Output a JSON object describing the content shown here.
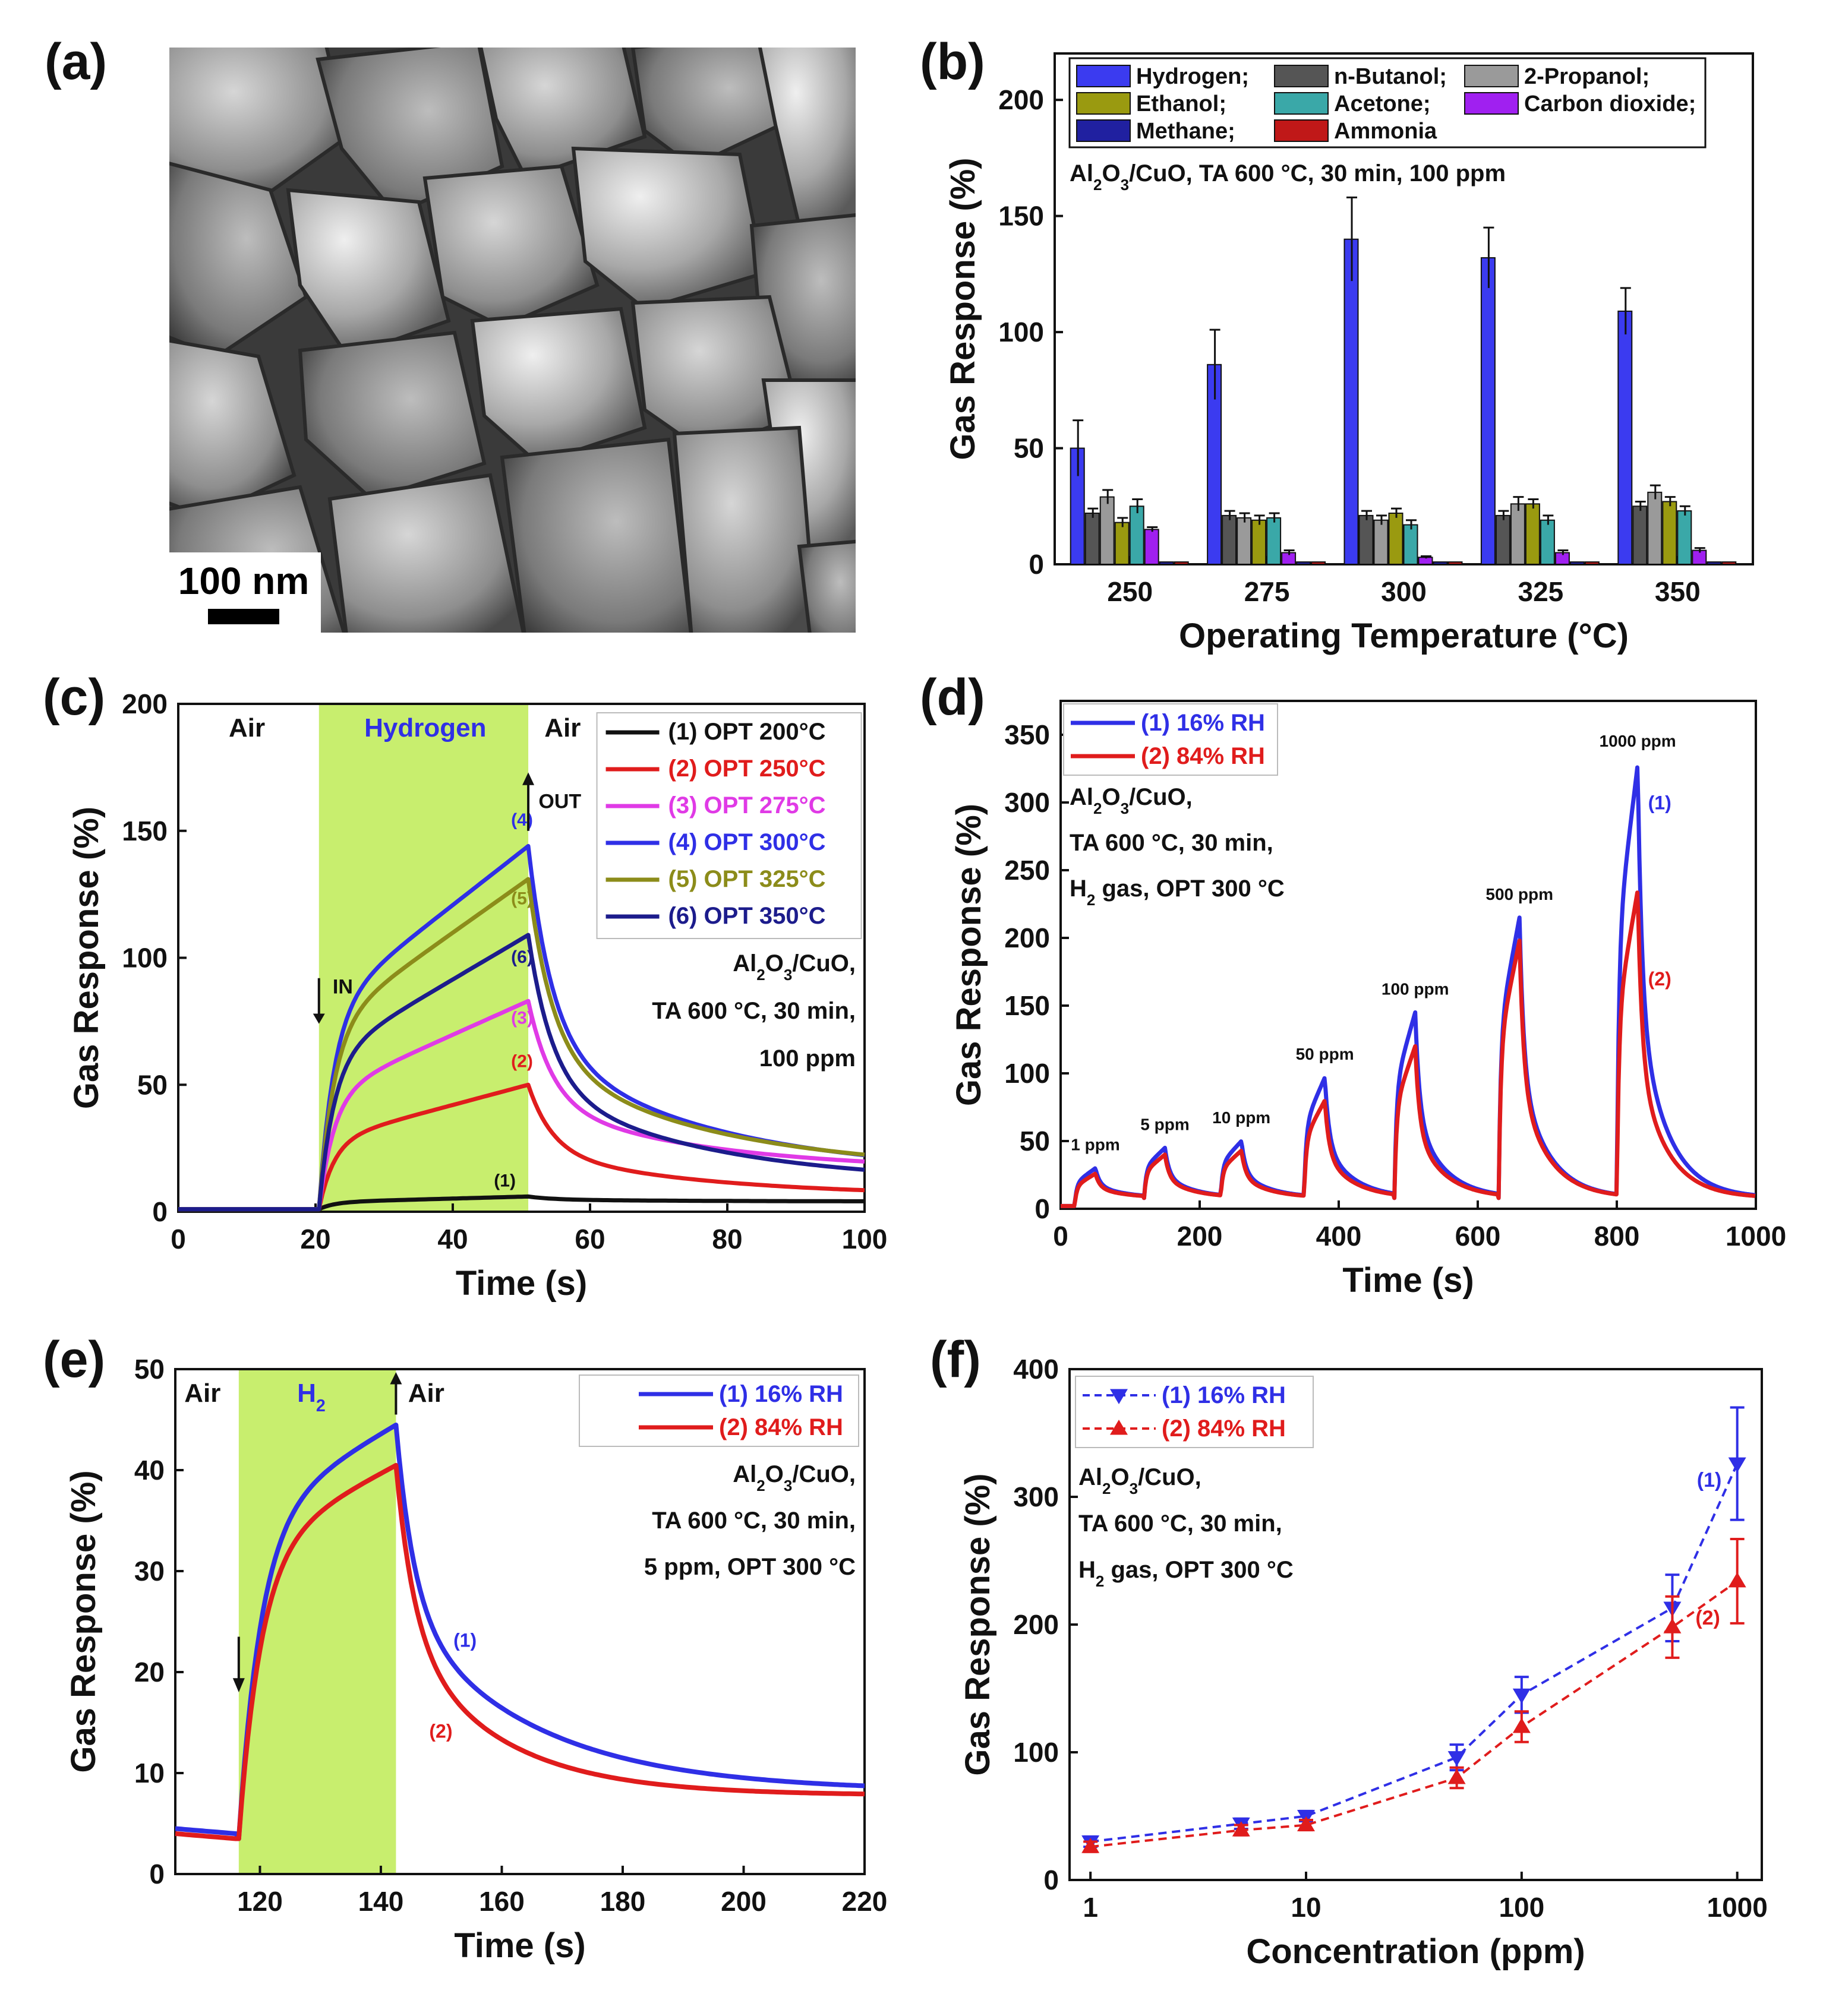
{
  "figure": {
    "panel_labels": [
      "(a)",
      "(b)",
      "(c)",
      "(d)",
      "(e)",
      "(f)"
    ],
    "scale_bar_label": "100 nm",
    "colors": {
      "blue": "#2f2fe6",
      "red": "#e01c1c",
      "magenta": "#e03ae6",
      "olive": "#8c8c1a",
      "navy": "#1c1c8c",
      "black": "#111111",
      "shade": "#c8ee6e"
    }
  },
  "chart_data": [
    {
      "id": "b",
      "type": "bar",
      "title": "",
      "xlabel": "Operating Temperature (°C)",
      "ylabel": "Gas Response (%)",
      "ylim": [
        0,
        220
      ],
      "yticks": [
        0,
        50,
        100,
        150,
        200
      ],
      "categories": [
        "250",
        "275",
        "300",
        "325",
        "350"
      ],
      "annotation": "Al2O3/CuO, TA 600 °C, 30 min, 100 ppm",
      "legend": "top-left",
      "series": [
        {
          "name": "Hydrogen;",
          "color": "#3b3bf0",
          "values": [
            50,
            86,
            140,
            132,
            109
          ],
          "errors": [
            12,
            15,
            18,
            13,
            10
          ]
        },
        {
          "name": "n-Butanol;",
          "color": "#555555",
          "values": [
            22,
            21,
            21,
            21,
            25
          ],
          "errors": [
            2,
            2,
            2,
            2,
            2
          ]
        },
        {
          "name": "2-Propanol;",
          "color": "#9a9a9a",
          "values": [
            29,
            20,
            19,
            26,
            31
          ],
          "errors": [
            3,
            2,
            2,
            3,
            3
          ]
        },
        {
          "name": "Ethanol;",
          "color": "#9a9a10",
          "values": [
            18,
            19,
            22,
            26,
            27
          ],
          "errors": [
            2,
            2,
            2,
            2,
            2
          ]
        },
        {
          "name": "Acetone;",
          "color": "#3aa8a8",
          "values": [
            25,
            20,
            17,
            19,
            23
          ],
          "errors": [
            3,
            2,
            2,
            2,
            2
          ]
        },
        {
          "name": "Carbon dioxide;",
          "color": "#a020f0",
          "values": [
            15,
            5,
            3,
            5,
            6
          ],
          "errors": [
            1,
            1,
            0.5,
            1,
            1
          ]
        },
        {
          "name": "Methane;",
          "color": "#2020a0",
          "values": [
            1,
            1,
            1,
            1,
            1
          ],
          "errors": [
            0,
            0,
            0,
            0,
            0
          ]
        },
        {
          "name": "Ammonia",
          "color": "#c01818",
          "values": [
            1,
            1,
            1,
            1,
            1
          ],
          "errors": [
            0,
            0,
            0,
            0,
            0
          ]
        }
      ]
    },
    {
      "id": "c",
      "type": "line",
      "xlabel": "Time (s)",
      "ylabel": "Gas Response (%)",
      "xlim": [
        0,
        100
      ],
      "ylim": [
        0,
        200
      ],
      "xticks": [
        0,
        20,
        40,
        60,
        80,
        100
      ],
      "yticks": [
        0,
        50,
        100,
        150,
        200
      ],
      "region_labels": [
        "Air",
        "Hydrogen",
        "Air"
      ],
      "arrow_labels": [
        "IN",
        "OUT"
      ],
      "annotation": [
        "Al2O3/CuO,",
        "TA 600 °C, 30 min,",
        "100 ppm"
      ],
      "legend": "top-right",
      "series": [
        {
          "name": "(1) OPT 200°C",
          "tag": "(1)",
          "color": "#111111",
          "peak": 6,
          "tail": 4
        },
        {
          "name": "(2) OPT 250°C",
          "tag": "(2)",
          "color": "#e01c1c",
          "peak": 50,
          "tail": 6
        },
        {
          "name": "(3) OPT 275°C",
          "tag": "(3)",
          "color": "#e03ae6",
          "peak": 83,
          "tail": 16
        },
        {
          "name": "(4) OPT 300°C",
          "tag": "(4)",
          "color": "#2f2fe6",
          "peak": 144,
          "tail": 15
        },
        {
          "name": "(5) OPT 325°C",
          "tag": "(5)",
          "color": "#8c8c1a",
          "peak": 131,
          "tail": 16
        },
        {
          "name": "(6) OPT 350°C",
          "tag": "(6)",
          "color": "#1c1c8c",
          "peak": 109,
          "tail": 11
        }
      ]
    },
    {
      "id": "d",
      "type": "line",
      "xlabel": "Time (s)",
      "ylabel": "Gas Response (%)",
      "xlim": [
        0,
        1000
      ],
      "ylim": [
        0,
        375
      ],
      "xticks": [
        0,
        200,
        400,
        600,
        800,
        1000
      ],
      "yticks": [
        0,
        50,
        100,
        150,
        200,
        250,
        300,
        350
      ],
      "annotation": [
        "Al2O3/CuO,",
        "TA 600 °C, 30 min,",
        "H2 gas, OPT 300 °C"
      ],
      "pulse_labels": [
        "1 ppm",
        "5 ppm",
        "10 ppm",
        "50 ppm",
        "100 ppm",
        "500 ppm",
        "1000 ppm"
      ],
      "pulse_start_s": [
        20,
        120,
        230,
        350,
        480,
        630,
        800
      ],
      "legend": "top-left",
      "series": [
        {
          "name": "(1) 16% RH",
          "tag": "(1)",
          "color": "#2f2fe6",
          "peaks": [
            30,
            45,
            50,
            97,
            145,
            215,
            328
          ]
        },
        {
          "name": "(2) 84% RH",
          "tag": "(2)",
          "color": "#e01c1c",
          "peaks": [
            26,
            40,
            43,
            80,
            120,
            198,
            235
          ]
        }
      ]
    },
    {
      "id": "e",
      "type": "line",
      "xlabel": "Time (s)",
      "ylabel": "Gas Response (%)",
      "xlim": [
        106,
        220
      ],
      "ylim": [
        0,
        50
      ],
      "xticks": [
        120,
        140,
        160,
        180,
        200,
        220
      ],
      "yticks": [
        0,
        10,
        20,
        30,
        40,
        50
      ],
      "region_labels": [
        "Air",
        "H2",
        "Air"
      ],
      "annotation": [
        "Al2O3/CuO,",
        "TA 600 °C, 30 min,",
        "5 ppm, OPT 300 °C"
      ],
      "legend": "top-right",
      "series": [
        {
          "name": "(1) 16% RH",
          "tag": "(1)",
          "color": "#2f2fe6",
          "peak": 44.5,
          "tail": 8.2
        },
        {
          "name": "(2) 84% RH",
          "tag": "(2)",
          "color": "#e01c1c",
          "peak": 40.5,
          "tail": 7.8
        }
      ]
    },
    {
      "id": "f",
      "type": "scatter",
      "xscale": "log",
      "xlabel": "Concentration (ppm)",
      "ylabel": "Gas Response (%)",
      "xlim": [
        0.8,
        1300
      ],
      "ylim": [
        0,
        400
      ],
      "xticks": [
        1,
        10,
        100,
        1000
      ],
      "yticks": [
        0,
        100,
        200,
        300,
        400
      ],
      "annotation": [
        "Al2O3/CuO,",
        "TA 600 °C, 30 min,",
        "H2 gas, OPT 300 °C"
      ],
      "legend": "top-left",
      "x": [
        1,
        5,
        10,
        50,
        100,
        500,
        1000
      ],
      "series": [
        {
          "name": "(1) 16% RH",
          "tag": "(1)",
          "marker": "down-triangle",
          "color": "#2f2fe6",
          "values": [
            30,
            44,
            50,
            96,
            145,
            213,
            326
          ],
          "errors": [
            4,
            4,
            4,
            10,
            14,
            26,
            44
          ]
        },
        {
          "name": "(2) 84% RH",
          "tag": "(2)",
          "marker": "up-triangle",
          "color": "#e01c1c",
          "values": [
            26,
            39,
            43,
            80,
            120,
            198,
            234
          ],
          "errors": [
            4,
            4,
            4,
            8,
            12,
            24,
            33
          ]
        }
      ]
    }
  ]
}
